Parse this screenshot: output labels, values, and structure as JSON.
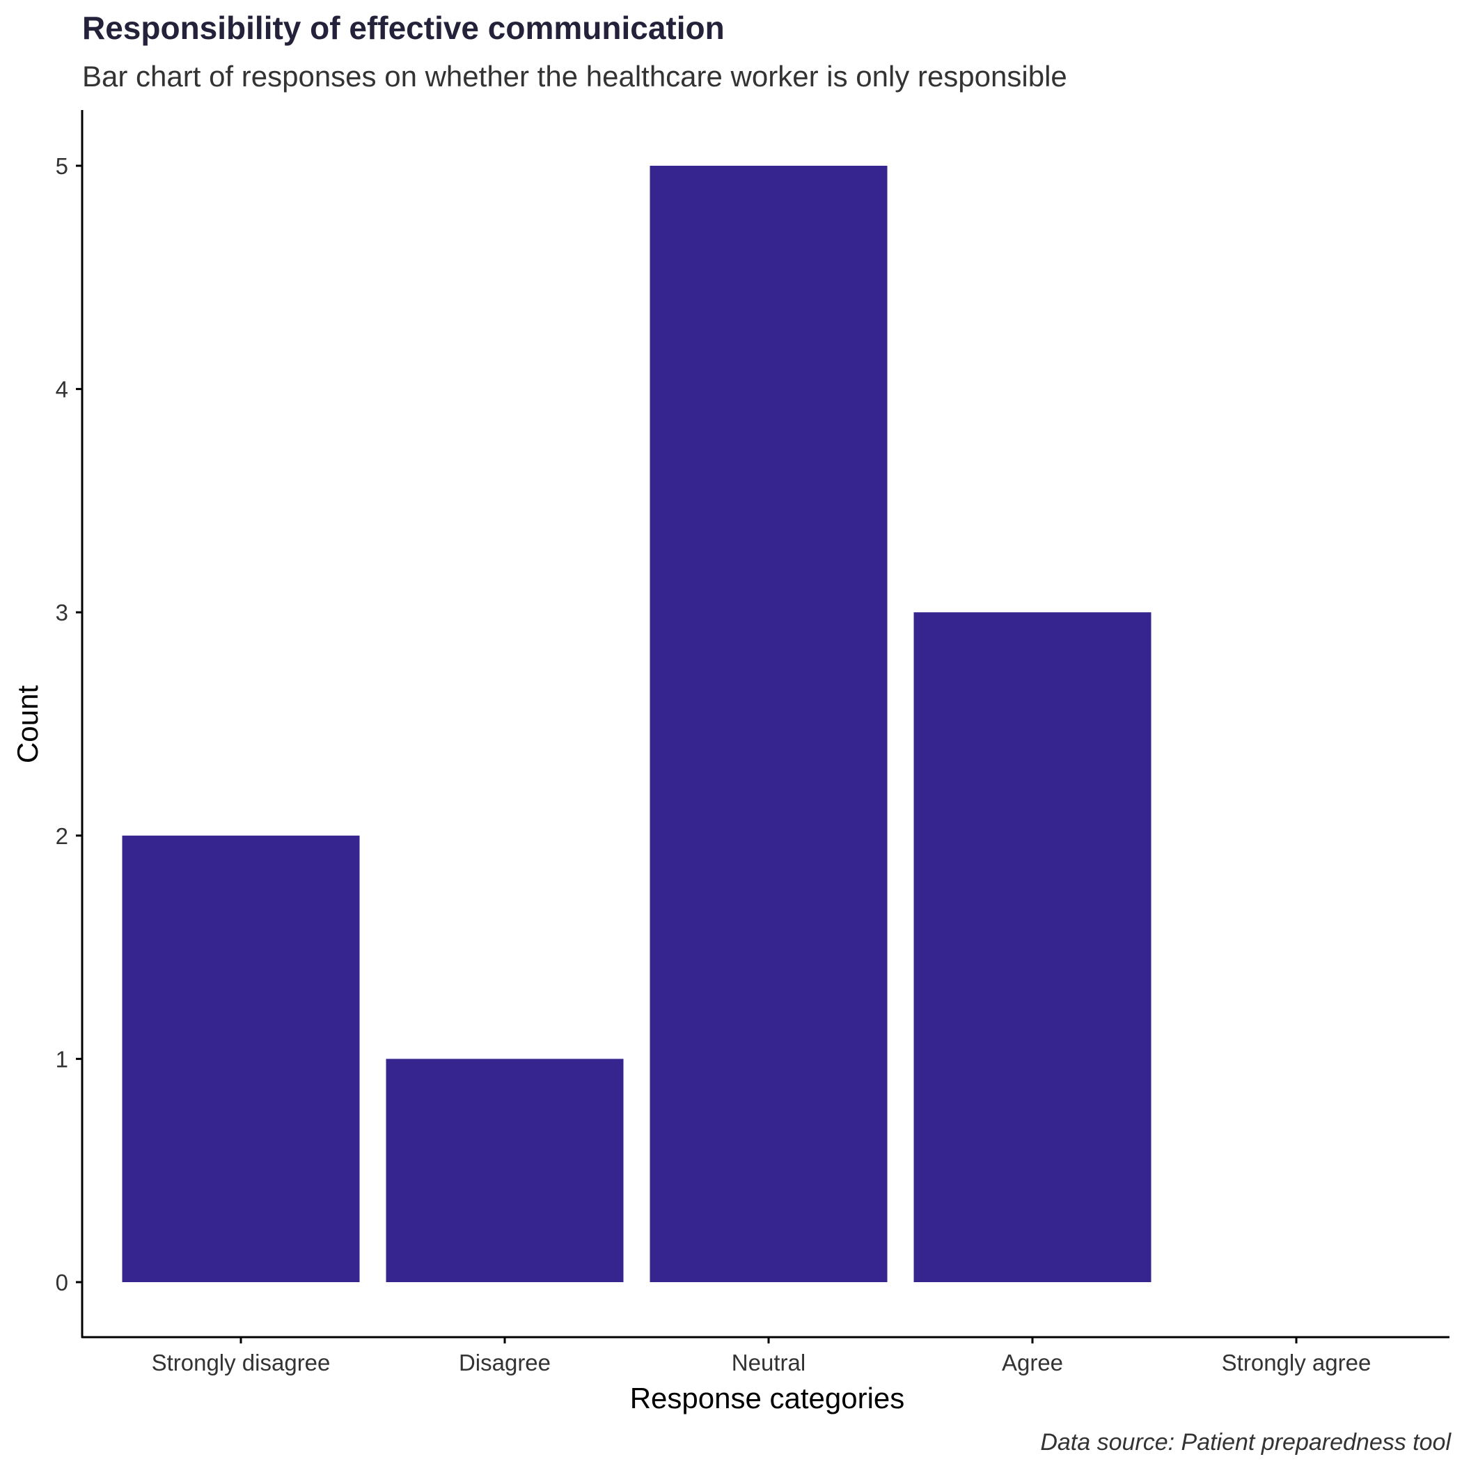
{
  "chart_data": {
    "type": "bar",
    "title": "Responsibility of effective communication",
    "subtitle": "Bar chart of responses on whether the healthcare worker is only responsible",
    "xlabel": "Response categories",
    "ylabel": "Count",
    "caption": "Data source: Patient preparedness tool",
    "categories": [
      "Strongly disagree",
      "Disagree",
      "Neutral",
      "Agree",
      "Strongly agree"
    ],
    "values": [
      2,
      1,
      5,
      3,
      0
    ],
    "ylim": [
      -0.25,
      5.25
    ],
    "yticks": [
      0,
      1,
      2,
      3,
      4,
      5
    ],
    "ytick_labels": [
      "0",
      "1",
      "2",
      "3",
      "4",
      "5"
    ],
    "bar_color": "#36248f",
    "grid": false,
    "legend": "none"
  },
  "colors": {
    "title": "#24223a",
    "subtitle": "#333333",
    "tick_label": "#333333",
    "axis": "#000000",
    "background": "#ffffff"
  }
}
